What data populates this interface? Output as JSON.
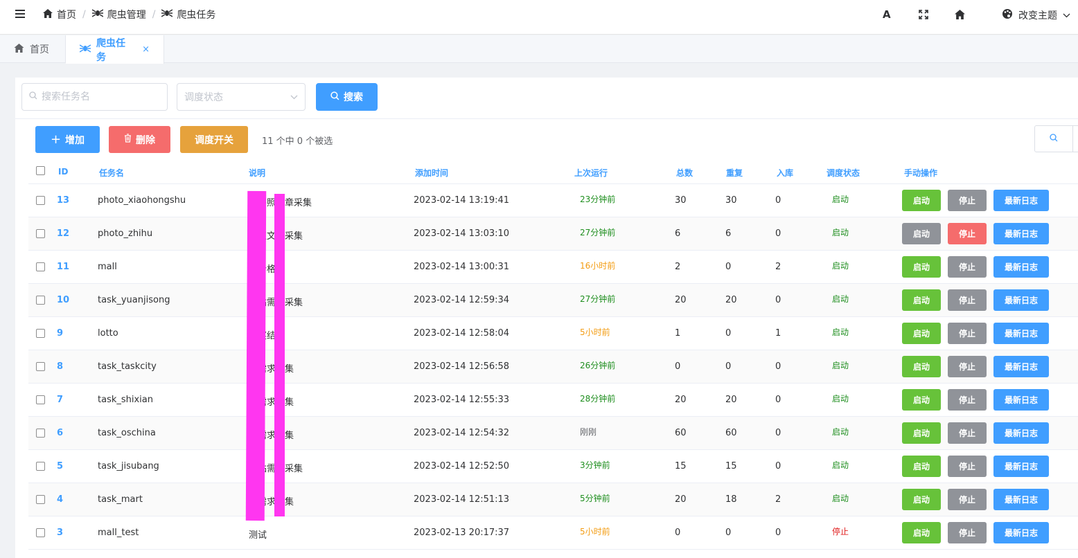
{
  "navbar": {
    "breadcrumb": [
      {
        "label": "首页",
        "icon": "home-icon"
      },
      {
        "label": "爬虫管理",
        "icon": "spider-icon"
      },
      {
        "label": "爬虫任务",
        "icon": "spider-icon"
      }
    ],
    "icons": [
      "font-size-icon",
      "fullscreen-icon",
      "home-icon"
    ],
    "theme_label": "改变主题"
  },
  "tabs": [
    {
      "label": "首页",
      "icon": "home-icon",
      "active": false
    },
    {
      "label": "爬虫任务",
      "icon": "spider-icon",
      "active": true,
      "close": "×"
    }
  ],
  "search": {
    "name_placeholder": "搜索任务名",
    "status_placeholder": "调度状态",
    "search_label": "搜索"
  },
  "toolbar": {
    "add_label": "增加",
    "delete_label": "删除",
    "switch_label": "调度开关",
    "selection_info": "11 个中 0 个被选"
  },
  "colors": {
    "primary": "#409eff",
    "success": "#67c23a",
    "danger": "#f56c6c",
    "warning": "#e6a23c",
    "info": "#909399",
    "green_text": "#1e8e1e",
    "orange_text": "#f39c12",
    "gray_text": "#606266",
    "red_text": "#e02020",
    "redaction": "#ff36f0"
  },
  "table": {
    "columns": [
      "ID",
      "任务名",
      "说明",
      "添加时间",
      "上次运行",
      "总数",
      "重复",
      "入库",
      "调度状态",
      "手动操作"
    ],
    "actions": {
      "start": "启动",
      "stop": "停止",
      "log": "最新日志"
    },
    "rows": [
      {
        "id": "13",
        "name": "photo_xiaohongshu",
        "desc": "书件照文章采集",
        "added": "2023-02-14 13:19:41",
        "last_run": "23分钟前",
        "last_run_color": "green",
        "total": "30",
        "dup": "30",
        "stored": "0",
        "status": "启动",
        "status_color": "green",
        "state": "normal"
      },
      {
        "id": "12",
        "name": "photo_zhihu",
        "desc": "证照文章采集",
        "added": "2023-02-14 13:03:10",
        "last_run": "27分钟前",
        "last_run_color": "green",
        "total": "6",
        "dup": "6",
        "stored": "0",
        "status": "启动",
        "status_color": "green",
        "state": "running"
      },
      {
        "id": "11",
        "name": "mall",
        "desc": "商价格",
        "added": "2023-02-14 13:00:31",
        "last_run": "16小时前",
        "last_run_color": "orange",
        "total": "2",
        "dup": "0",
        "stored": "2",
        "status": "启动",
        "status_color": "green",
        "state": "normal"
      },
      {
        "id": "10",
        "name": "task_yuanjisong",
        "desc": "送站需求采集",
        "added": "2023-02-14 12:59:34",
        "last_run": "27分钟前",
        "last_run_color": "green",
        "total": "20",
        "dup": "20",
        "stored": "0",
        "status": "启动",
        "status_color": "green",
        "state": "normal"
      },
      {
        "id": "9",
        "name": "lotto",
        "desc": "透奖结果",
        "added": "2023-02-14 12:58:04",
        "last_run": "5小时前",
        "last_run_color": "orange",
        "total": "1",
        "dup": "0",
        "stored": "1",
        "status": "启动",
        "status_color": "green",
        "state": "normal"
      },
      {
        "id": "8",
        "name": "task_taskcity",
        "desc": "网需求采集",
        "added": "2023-02-14 12:56:58",
        "last_run": "26分钟前",
        "last_run_color": "green",
        "total": "0",
        "dup": "0",
        "stored": "0",
        "status": "启动",
        "status_color": "green",
        "state": "normal"
      },
      {
        "id": "7",
        "name": "task_shixian",
        "desc": "网需求采集",
        "added": "2023-02-14 12:55:33",
        "last_run": "28分钟前",
        "last_run_color": "green",
        "total": "20",
        "dup": "20",
        "stored": "0",
        "status": "启动",
        "status_color": "green",
        "state": "normal"
      },
      {
        "id": "6",
        "name": "task_oschina",
        "desc": "众需求采集",
        "added": "2023-02-14 12:54:32",
        "last_run": "刚刚",
        "last_run_color": "gray",
        "total": "60",
        "dup": "60",
        "stored": "0",
        "status": "启动",
        "status_color": "green",
        "state": "normal"
      },
      {
        "id": "5",
        "name": "task_jisubang",
        "desc": "帮站需求采集",
        "added": "2023-02-14 12:52:50",
        "last_run": "3分钟前",
        "last_run_color": "green",
        "total": "15",
        "dup": "15",
        "stored": "0",
        "status": "启动",
        "status_color": "green",
        "state": "normal"
      },
      {
        "id": "4",
        "name": "task_mart",
        "desc": "网需求采集",
        "added": "2023-02-14 12:51:13",
        "last_run": "5分钟前",
        "last_run_color": "green",
        "total": "20",
        "dup": "18",
        "stored": "2",
        "status": "启动",
        "status_color": "green",
        "state": "normal"
      },
      {
        "id": "3",
        "name": "mall_test",
        "desc": "测试",
        "added": "2023-02-13 20:17:37",
        "last_run": "5小时前",
        "last_run_color": "orange",
        "total": "0",
        "dup": "0",
        "stored": "0",
        "status": "停止",
        "status_color": "red",
        "state": "normal"
      }
    ]
  }
}
